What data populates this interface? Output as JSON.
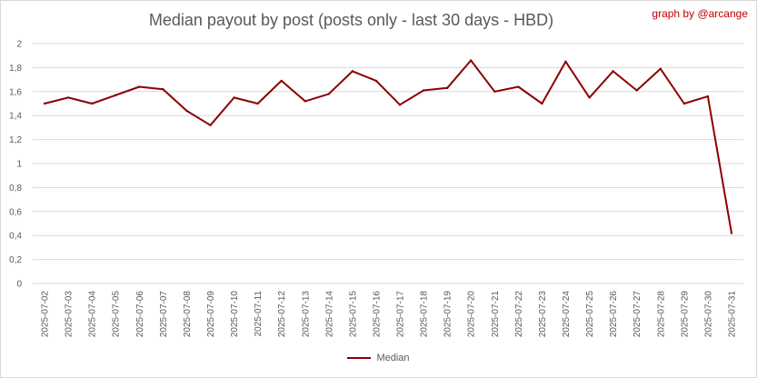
{
  "chart_data": {
    "type": "line",
    "title": "Median payout by post (posts only - last 30 days - HBD)",
    "credit": "graph by @arcange",
    "x": [
      "2025-07-02",
      "2025-07-03",
      "2025-07-04",
      "2025-07-05",
      "2025-07-06",
      "2025-07-07",
      "2025-07-08",
      "2025-07-09",
      "2025-07-10",
      "2025-07-11",
      "2025-07-12",
      "2025-07-13",
      "2025-07-14",
      "2025-07-15",
      "2025-07-16",
      "2025-07-17",
      "2025-07-18",
      "2025-07-19",
      "2025-07-20",
      "2025-07-21",
      "2025-07-22",
      "2025-07-23",
      "2025-07-24",
      "2025-07-25",
      "2025-07-26",
      "2025-07-27",
      "2025-07-28",
      "2025-07-29",
      "2025-07-30",
      "2025-07-31"
    ],
    "series": [
      {
        "name": "Median",
        "color": "#8b0000",
        "values": [
          1.5,
          1.55,
          1.5,
          1.57,
          1.64,
          1.62,
          1.44,
          1.32,
          1.55,
          1.5,
          1.69,
          1.52,
          1.58,
          1.77,
          1.69,
          1.49,
          1.61,
          1.63,
          1.86,
          1.6,
          1.64,
          1.5,
          1.85,
          1.55,
          1.77,
          1.61,
          1.79,
          1.5,
          1.56,
          0.42
        ]
      }
    ],
    "ylim": [
      0,
      2
    ],
    "yticks": [
      "0",
      "0,2",
      "0,4",
      "0,6",
      "0,8",
      "1",
      "1,2",
      "1,4",
      "1,6",
      "1,8",
      "2"
    ],
    "ytick_values": [
      0,
      0.2,
      0.4,
      0.6,
      0.8,
      1,
      1.2,
      1.4,
      1.6,
      1.8,
      2
    ],
    "grid": true,
    "legend_position": "bottom"
  }
}
